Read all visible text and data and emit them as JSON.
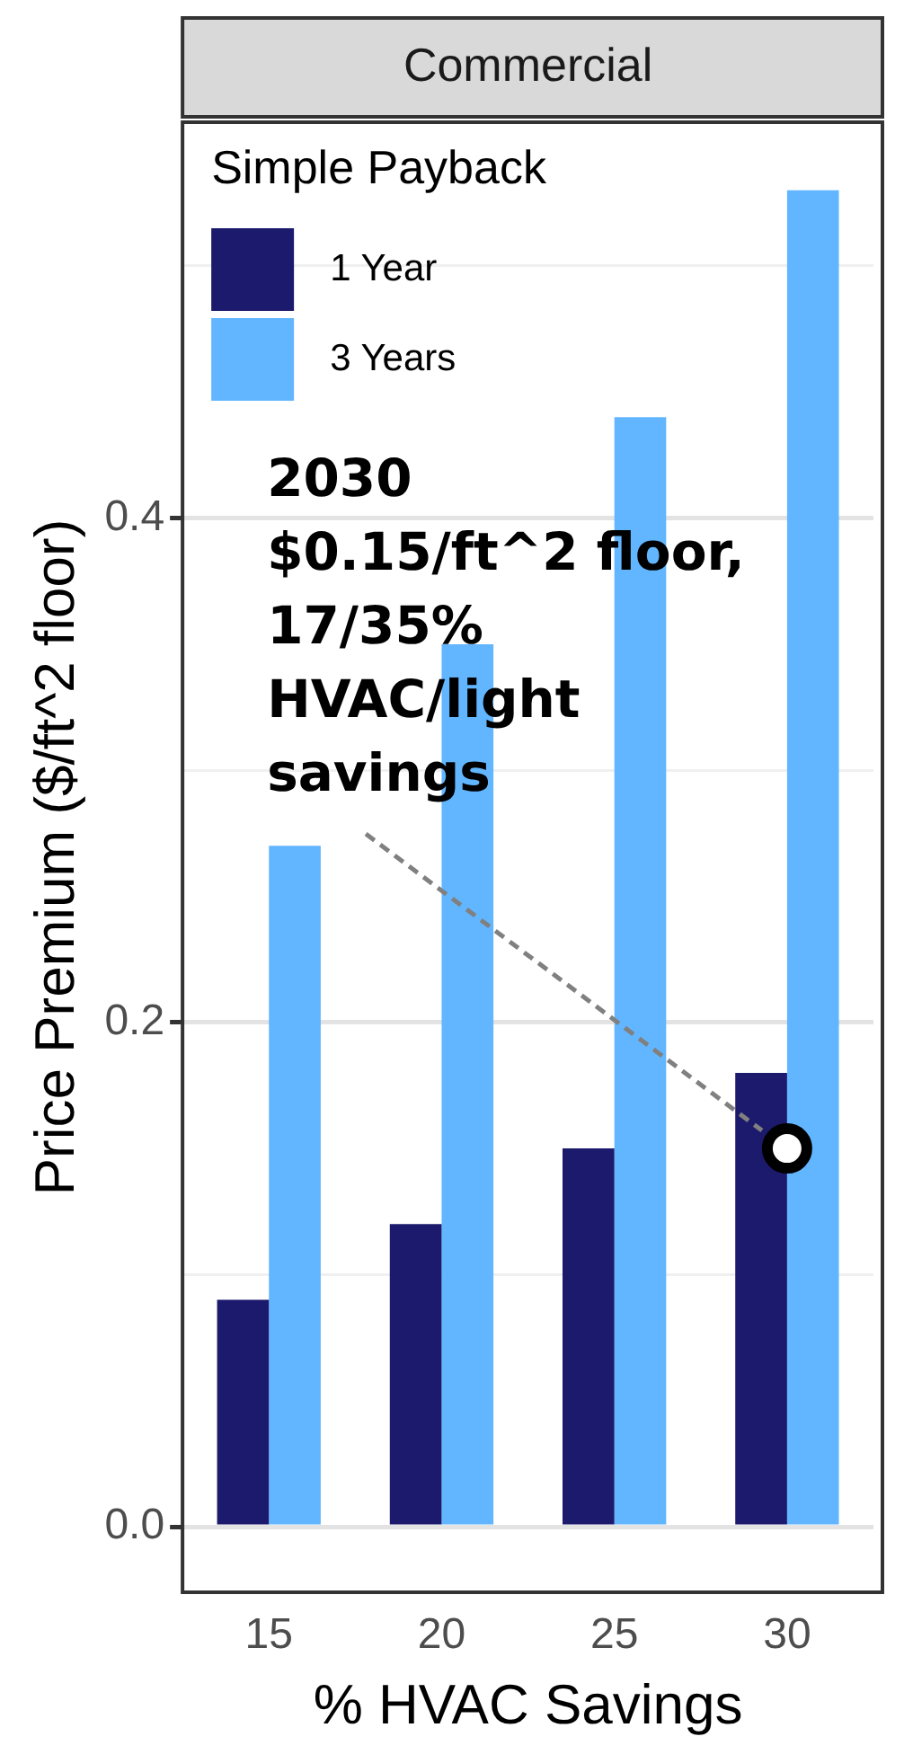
{
  "chart_data": {
    "type": "bar",
    "title": "Commercial",
    "xlabel": "% HVAC Savings",
    "ylabel": "Price Premium ($/ft^2 floor)",
    "legend_title": "Simple Payback",
    "categories": [
      "15",
      "20",
      "25",
      "30"
    ],
    "series": [
      {
        "name": "1 Year",
        "color": "#1c1a6c",
        "values": [
          0.09,
          0.12,
          0.15,
          0.18
        ]
      },
      {
        "name": "3 Years",
        "color": "#62b6ff",
        "values": [
          0.27,
          0.35,
          0.44,
          0.53
        ]
      },
      {
        "type": "scatter",
        "color": "#000000",
        "x": [
          "30"
        ],
        "values": [
          0.15
        ]
      }
    ],
    "ylim": [
      -0.026,
      0.557
    ],
    "yticks": [
      {
        "value": 0,
        "label": "0.0"
      },
      {
        "value": 0.1,
        "label": null
      },
      {
        "value": 0.2,
        "label": "0.2"
      },
      {
        "value": 0.3,
        "label": null
      },
      {
        "value": 0.4,
        "label": "0.4"
      },
      {
        "value": 0.5,
        "label": null
      }
    ],
    "grid": "y",
    "legend": "top left",
    "marker": "circle",
    "annotations": [
      "2030\n$0.15/ft^2 floor, 17/35% HVAC/light savings"
    ]
  }
}
